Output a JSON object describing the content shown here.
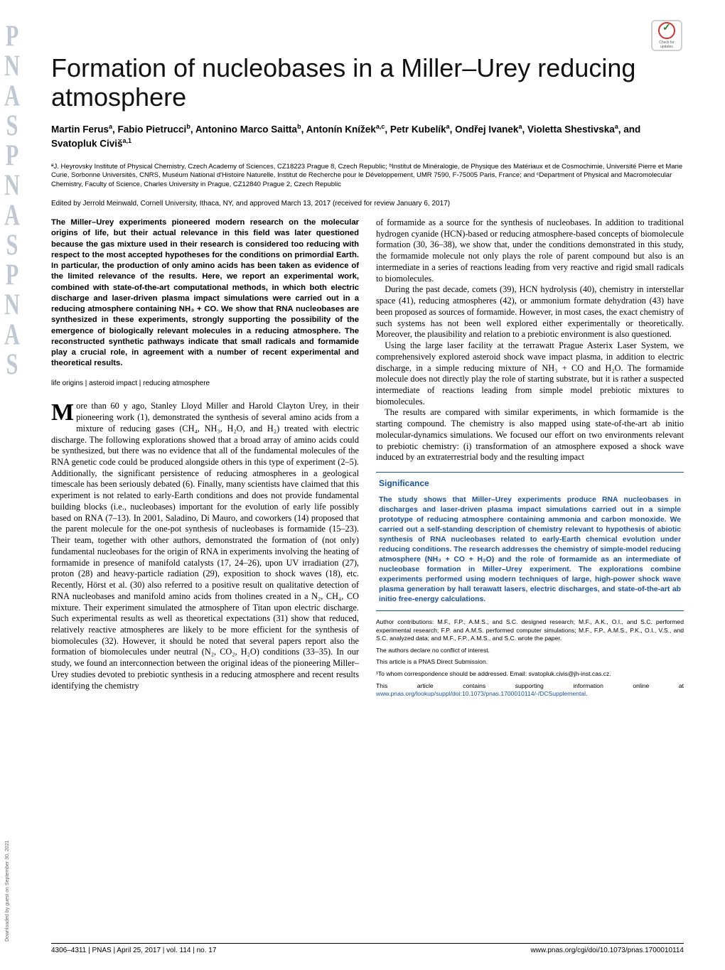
{
  "journal_side": [
    "P",
    "N",
    "A",
    "S",
    "P",
    "N",
    "A",
    "S",
    "P",
    "N",
    "A",
    "S"
  ],
  "download_note": "Downloaded by guest on September 30, 2021",
  "check_updates": {
    "label1": "Check for",
    "label2": "updates"
  },
  "title": "Formation of nucleobases in a Miller–Urey reducing atmosphere",
  "authors_html": "Martin Ferus<sup>a</sup>, Fabio Pietrucci<sup>b</sup>, Antonino Marco Saitta<sup>b</sup>, Antonín Knížek<sup>a,c</sup>, Petr Kubelík<sup>a</sup>, Ondřej Ivanek<sup>a</sup>, Violetta Shestivska<sup>a</sup>, and Svatopluk Civiš<sup>a,1</sup>",
  "affiliations": "ªJ. Heyrovsky Institute of Physical Chemistry, Czech Academy of Sciences, CZ18223 Prague 8, Czech Republic; ᵇInstitut de Minéralogie, de Physique des Matériaux et de Cosmochimie, Université Pierre et Marie Curie, Sorbonne Universités, CNRS, Muséum National d'Histoire Naturelle, Institut de Recherche pour le Développement, UMR 7590, F-75005 Paris, France; and ᶜDepartment of Physical and Macromolecular Chemistry, Faculty of Science, Charles University in Prague, CZ12840 Prague 2, Czech Republic",
  "edited_line": "Edited by Jerrold Meinwald, Cornell University, Ithaca, NY, and approved March 13, 2017 (received for review January 6, 2017)",
  "abstract": "The Miller–Urey experiments pioneered modern research on the molecular origins of life, but their actual relevance in this field was later questioned because the gas mixture used in their research is considered too reducing with respect to the most accepted hypotheses for the conditions on primordial Earth. In particular, the production of only amino acids has been taken as evidence of the limited relevance of the results. Here, we report an experimental work, combined with state-of-the-art computational methods, in which both electric discharge and laser-driven plasma impact simulations were carried out in a reducing atmosphere containing NH₃ + CO. We show that RNA nucleobases are synthesized in these experiments, strongly supporting the possibility of the emergence of biologically relevant molecules in a reducing atmosphere. The reconstructed synthetic pathways indicate that small radicals and formamide play a crucial role, in agreement with a number of recent experimental and theoretical results.",
  "keywords": "life origins | asteroid impact | reducing atmosphere",
  "left_body": "ore than 60 y ago, Stanley Lloyd Miller and Harold Clayton Urey, in their pioneering work (1), demonstrated the synthesis of several amino acids from a mixture of reducing gases (CH₄, NH₃, H₂O, and H₂) treated with electric discharge. The following explorations showed that a broad array of amino acids could be synthesized, but there was no evidence that all of the fundamental molecules of the RNA genetic code could be produced alongside others in this type of experiment (2–5). Additionally, the significant persistence of reducing atmospheres in a geological timescale has been seriously debated (6). Finally, many scientists have claimed that this experiment is not related to early-Earth conditions and does not provide fundamental building blocks (i.e., nucleobases) important for the evolution of early life possibly based on RNA (7–13). In 2001, Saladino, Di Mauro, and coworkers (14) proposed that the parent molecule for the one-pot synthesis of nucleobases is formamide (15–23). Their team, together with other authors, demonstrated the formation of (not only) fundamental nucleobases for the origin of RNA in experiments involving the heating of formamide in presence of manifold catalysts (17, 24–26), upon UV irradiation (27), proton (28) and heavy-particle radiation (29), exposition to shock waves (18), etc. Recently, Hörst et al. (30) also referred to a positive result on qualitative detection of RNA nucleobases and manifold amino acids from tholines created in a N₂, CH₄, CO mixture. Their experiment simulated the atmosphere of Titan upon electric discharge. Such experimental results as well as theoretical expectations (31) show that reduced, relatively reactive atmospheres are likely to be more efficient for the synthesis of biomolecules (32). However, it should be noted that several papers report also the formation of biomolecules under neutral (N₂, CO₂, H₂O) conditions (33–35). In our study, we found an interconnection between the original ideas of the pioneering Miller–Urey studies devoted to prebiotic synthesis in a reducing atmosphere and recent results identifying the chemistry",
  "right_p1": "of formamide as a source for the synthesis of nucleobases. In addition to traditional hydrogen cyanide (HCN)-based or reducing atmosphere-based concepts of biomolecule formation (30, 36–38), we show that, under the conditions demonstrated in this study, the formamide molecule not only plays the role of parent compound but also is an intermediate in a series of reactions leading from very reactive and rigid small radicals to biomolecules.",
  "right_p2": "During the past decade, comets (39), HCN hydrolysis (40), chemistry in interstellar space (41), reducing atmospheres (42), or ammonium formate dehydration (43) have been proposed as sources of formamide. However, in most cases, the exact chemistry of such systems has not been well explored either experimentally or theoretically. Moreover, the plausibility and relation to a prebiotic environment is also questioned.",
  "right_p3": "Using the large laser facility at the terrawatt Prague Asterix Laser System, we comprehensively explored asteroid shock wave impact plasma, in addition to electric discharge, in a simple reducing mixture of NH₃ + CO and H₂O. The formamide molecule does not directly play the role of starting substrate, but it is rather a suspected intermediate of reactions leading from simple model prebiotic mixtures to biomolecules.",
  "right_p4": "The results are compared with similar experiments, in which formamide is the starting compound. The chemistry is also mapped using state-of-the-art ab initio molecular-dynamics simulations. We focused our effort on two environments relevant to prebiotic chemistry: (i) transformation of an atmosphere exposed a shock wave induced by an extraterrestrial body and the resulting impact",
  "significance_title": "Significance",
  "significance_body": "The study shows that Miller–Urey experiments produce RNA nucleobases in discharges and laser-driven plasma impact simulations carried out in a simple prototype of reducing atmosphere containing ammonia and carbon monoxide. We carried out a self-standing description of chemistry relevant to hypothesis of abiotic synthesis of RNA nucleobases related to early-Earth chemical evolution under reducing conditions. The research addresses the chemistry of simple-model reducing atmosphere (NH₃ + CO + H₂O) and the role of formamide as an intermediate of nucleobase formation in Miller–Urey experiment. The explorations combine experiments performed using modern techniques of large, high-power shock wave plasma generation by hall terawatt lasers, electric discharges, and state-of-the-art ab initio free-energy calculations.",
  "footnotes": {
    "contributions": "Author contributions: M.F., F.P., A.M.S., and S.C. designed research; M.F., A.K., O.I., and S.C. performed experimental research; F.P. and A.M.S. performed computer simulations; M.F., F.P., A.M.S., P.K., O.I., V.S., and S.C. analyzed data; and M.F., F.P., A.M.S., and S.C. wrote the paper.",
    "conflict": "The authors declare no conflict of interest.",
    "submission": "This article is a PNAS Direct Submission.",
    "correspondence": "¹To whom correspondence should be addressed. Email: svatopluk.civis@jh-inst.cas.cz.",
    "supporting": "This article contains supporting information online at ",
    "supporting_link": "www.pnas.org/lookup/suppl/doi:10.1073/pnas.1700010114/-/DCSupplemental",
    "supporting_end": "."
  },
  "footer": {
    "left": "4306–4311  |  PNAS  |  April 25, 2017  |  vol. 114  |  no. 17",
    "right": "www.pnas.org/cgi/doi/10.1073/pnas.1700010114"
  },
  "colors": {
    "accent": "#1a4f9c",
    "side_gray": "#c0c8d2",
    "text": "#000000",
    "check_red": "#d0312d",
    "check_green": "#2a7a2a"
  }
}
